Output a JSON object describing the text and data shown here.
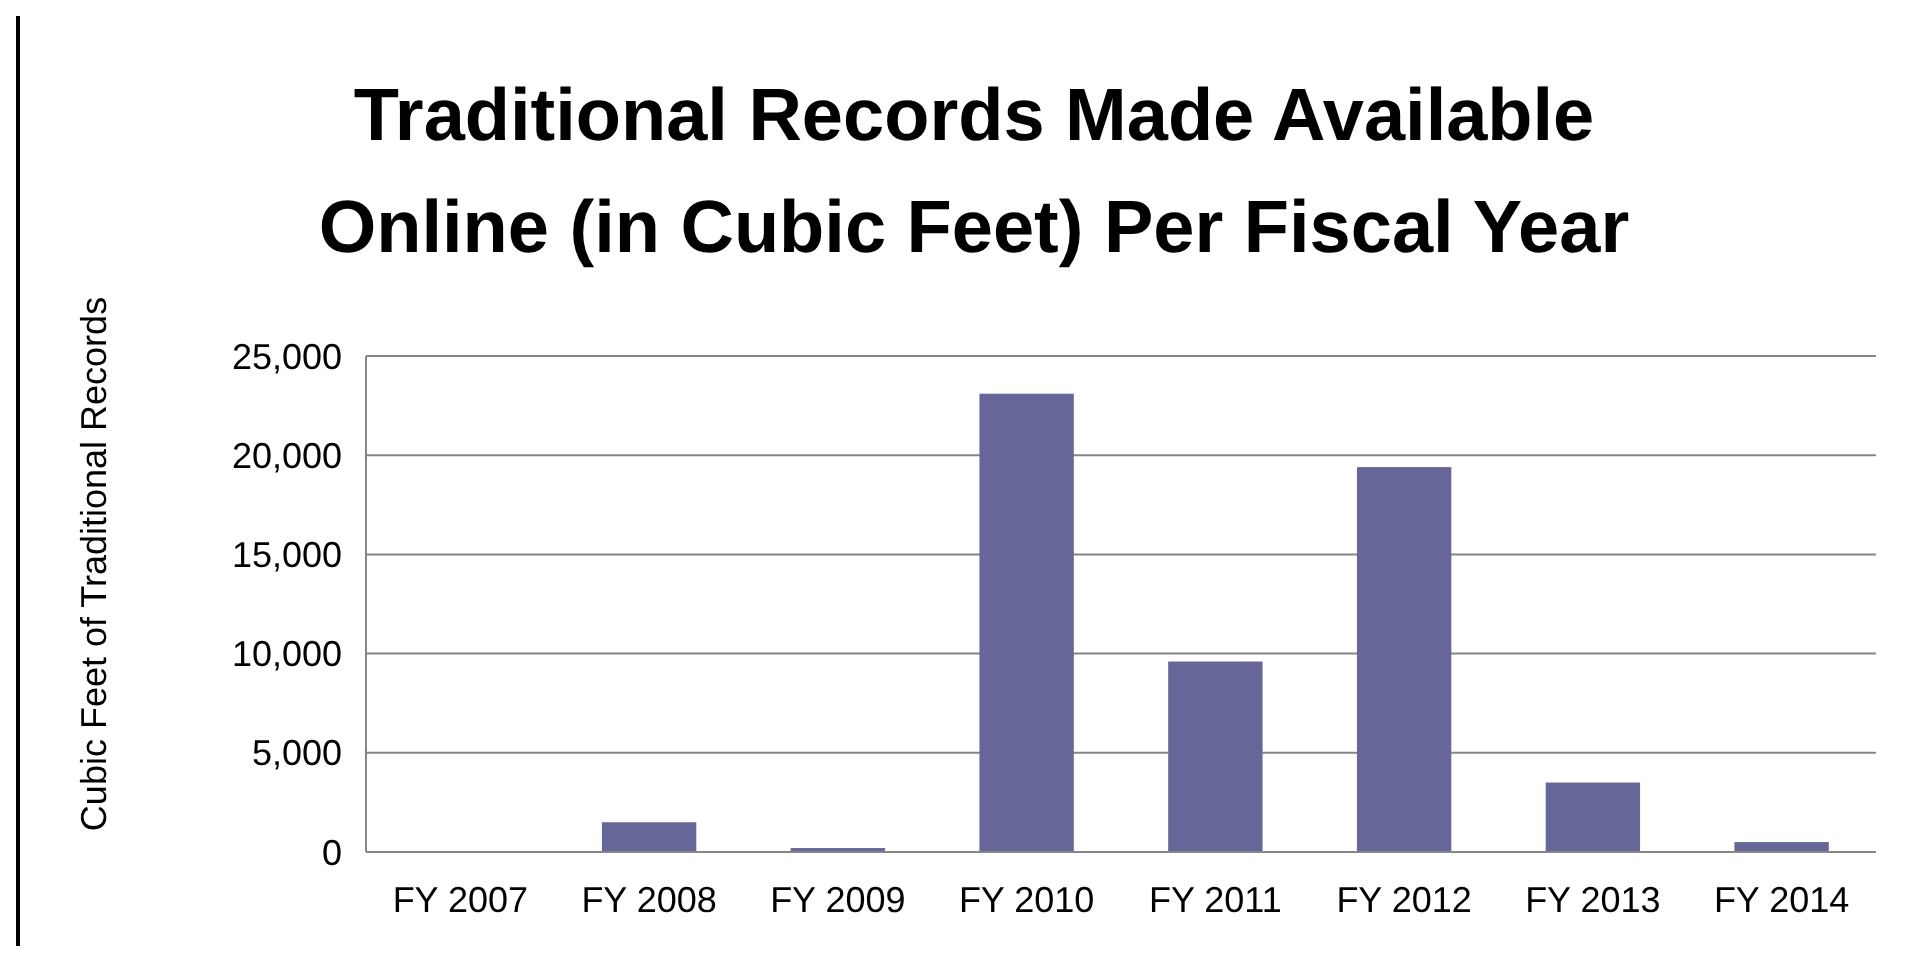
{
  "chart_data": {
    "type": "bar",
    "title": "Traditional Records Made Available Online (in Cubic Feet) Per Fiscal Year",
    "ylabel": "Cubic Feet of Traditional Records",
    "categories": [
      "FY 2007",
      "FY 2008",
      "FY 2009",
      "FY 2010",
      "FY 2011",
      "FY 2012",
      "FY 2013",
      "FY 2014"
    ],
    "values": [
      0,
      1500,
      200,
      23100,
      9600,
      19400,
      3500,
      500
    ],
    "color": "#666699",
    "ylim": [
      0,
      25000
    ],
    "yticks": [
      {
        "value": 0,
        "label": "0"
      },
      {
        "value": 5000,
        "label": "5,000"
      },
      {
        "value": 10000,
        "label": "10,000"
      },
      {
        "value": 15000,
        "label": "15,000"
      },
      {
        "value": 20000,
        "label": "20,000"
      },
      {
        "value": 25000,
        "label": "25,000"
      }
    ],
    "grid": "y"
  }
}
